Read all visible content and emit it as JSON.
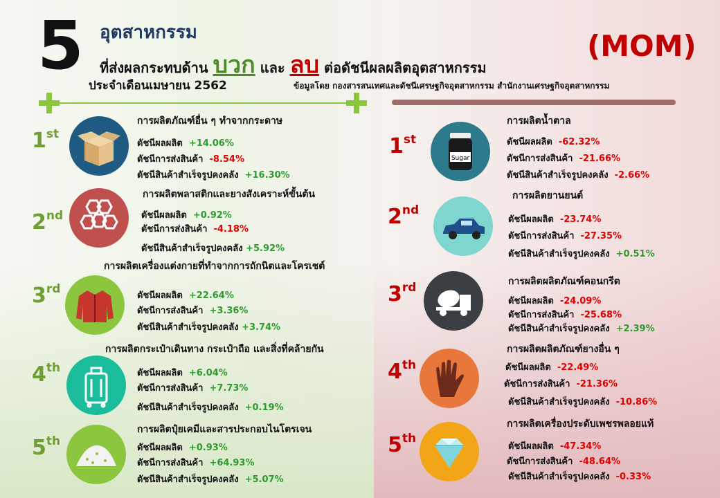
{
  "header": {
    "big_number": "5",
    "title_line1": "อุตสาหกรรม",
    "title_line2_pre": "ที่ส่งผลกระทบด้าน",
    "positive_word": "บวก",
    "and_word": "และ",
    "negative_word": "ลบ",
    "title_line2_post": "ต่อดัชนีผลผลิตอุตสาหกรรม",
    "month": "ประจำเดือนเมษายน 2562",
    "source": "ข้อมูลโดย กองสารสนเทศและดัชนีเศรษฐกิจอุตสาหกรรม สำนักงานเศรษฐกิจอุตสาหกรรม",
    "mom": "(MOM)"
  },
  "colors": {
    "positive": "#6f9f33",
    "negative": "#c00000",
    "value_up": "#2e9a2e",
    "value_down": "#e00000"
  },
  "positive": [
    {
      "rank": "1",
      "suffix": "st",
      "icon": "box-icon",
      "circle_color": "#1e5a82",
      "category": "การผลิตภัณฑ์อื่น ๆ ทำจากกระดาษ",
      "lines": [
        {
          "label": "ดัชนีผลผลิต",
          "value": "+14.06%"
        },
        {
          "label": "ดัชนีการส่งสินค้า",
          "value": "-8.54%"
        },
        {
          "label": "ดัชนีสินค้าสำเร็จรูปคงคลัง",
          "value": "+16.30%"
        }
      ]
    },
    {
      "rank": "2",
      "suffix": "nd",
      "icon": "hexagon-molecule-icon",
      "circle_color": "#c0504d",
      "category": "การผลิตพลาสติกและยางสังเคราะห์ขั้นต้น",
      "lines": [
        {
          "label": "ดัชนีผลผลิต",
          "value": "+0.92%"
        },
        {
          "label": "ดัชนีการส่งสินค้า",
          "value": "-4.18%"
        },
        {
          "label": "ดัชนีสินค้าสำเร็จรูปคงคลัง",
          "value": "+5.92%"
        }
      ]
    },
    {
      "rank": "3",
      "suffix": "rd",
      "icon": "jacket-icon",
      "circle_color": "#8cc63f",
      "category": "การผลิตเครื่องแต่งกายที่ทำจากการถักนิตและโครเชต์",
      "lines": [
        {
          "label": "ดัชนีผลผลิต",
          "value": "+22.64%"
        },
        {
          "label": "ดัชนีการส่งสินค้า",
          "value": "+3.36%"
        },
        {
          "label": "ดัชนีสินค้าสำเร็จรูปคงคลัง",
          "value": "+3.74%"
        }
      ]
    },
    {
      "rank": "4",
      "suffix": "th",
      "icon": "luggage-icon",
      "circle_color": "#1abc9c",
      "category": "การผลิตกระเป๋าเดินทาง กระเป๋าถือ และสิ่งที่คล้ายกัน",
      "lines": [
        {
          "label": "ดัชนีผลผลิต",
          "value": "+6.04%"
        },
        {
          "label": "ดัชนีการส่งสินค้า",
          "value": "+7.73%"
        },
        {
          "label": "ดัชนีสินค้าสำเร็จรูปคงคลัง",
          "value": "+0.19%"
        }
      ]
    },
    {
      "rank": "5",
      "suffix": "th",
      "icon": "fertilizer-pile-icon",
      "circle_color": "#8cc63f",
      "category": "การผลิตปุ๋ยเคมีและสารประกอบไนโตรเจน",
      "lines": [
        {
          "label": "ดัชนีผลผลิต",
          "value": "+0.93%"
        },
        {
          "label": "ดัชนีการส่งสินค้า",
          "value": "+64.93%"
        },
        {
          "label": "ดัชนีสินค้าสำเร็จรูปคงคลัง",
          "value": "+5.07%"
        }
      ]
    }
  ],
  "negative": [
    {
      "rank": "1",
      "suffix": "st",
      "icon": "sugar-jar-icon",
      "circle_color": "#2c7a8c",
      "category": "การผลิตน้ำตาล",
      "icon_label": "Sugar",
      "lines": [
        {
          "label": "ดัชนีผลผลิต",
          "value": "-62.32%"
        },
        {
          "label": "ดัชนีการส่งสินค้า",
          "value": "-21.66%"
        },
        {
          "label": "ดัชนีสินค้าสำเร็จรูปคงคลัง",
          "value": "-2.66%"
        }
      ]
    },
    {
      "rank": "2",
      "suffix": "nd",
      "icon": "car-icon",
      "circle_color": "#7fd6cf",
      "category": "การผลิตยานยนต์",
      "lines": [
        {
          "label": "ดัชนีผลผลิต",
          "value": "-23.74%"
        },
        {
          "label": "ดัชนีการส่งสินค้า",
          "value": "-27.35%"
        },
        {
          "label": "ดัชนีสินค้าสำเร็จรูปคงคลัง",
          "value": "+0.51%"
        }
      ]
    },
    {
      "rank": "3",
      "suffix": "rd",
      "icon": "cement-truck-icon",
      "circle_color": "#3a3f44",
      "category": "การผลิตผลิตภัณฑ์คอนกรีต",
      "lines": [
        {
          "label": "ดัชนีผลผลิต",
          "value": "-24.09%"
        },
        {
          "label": "ดัชนีการส่งสินค้า",
          "value": "-25.68%"
        },
        {
          "label": "ดัชนีสินค้าสำเร็จรูปคงคลัง",
          "value": "+2.39%"
        }
      ]
    },
    {
      "rank": "4",
      "suffix": "th",
      "icon": "rubber-glove-icon",
      "circle_color": "#e8773b",
      "category": "การผลิตผลิตภัณฑ์ยางอื่น ๆ",
      "lines": [
        {
          "label": "ดัชนีผลผลิต",
          "value": "-22.49%"
        },
        {
          "label": "ดัชนีการส่งสินค้า",
          "value": "-21.36%"
        },
        {
          "label": "ดัชนีสินค้าสำเร็จรูปคงคลัง",
          "value": "-10.86%"
        }
      ]
    },
    {
      "rank": "5",
      "suffix": "th",
      "icon": "diamond-icon",
      "circle_color": "#f2a516",
      "category": "การผลิตเครื่องประดับเพชรพลอยแท้",
      "lines": [
        {
          "label": "ดัชนีผลผลิต",
          "value": "-47.34%"
        },
        {
          "label": "ดัชนีการส่งสินค้า",
          "value": "-48.64%"
        },
        {
          "label": "ดัชนีสินค้าสำเร็จรูปคงคลัง",
          "value": "-0.33%"
        }
      ]
    }
  ]
}
